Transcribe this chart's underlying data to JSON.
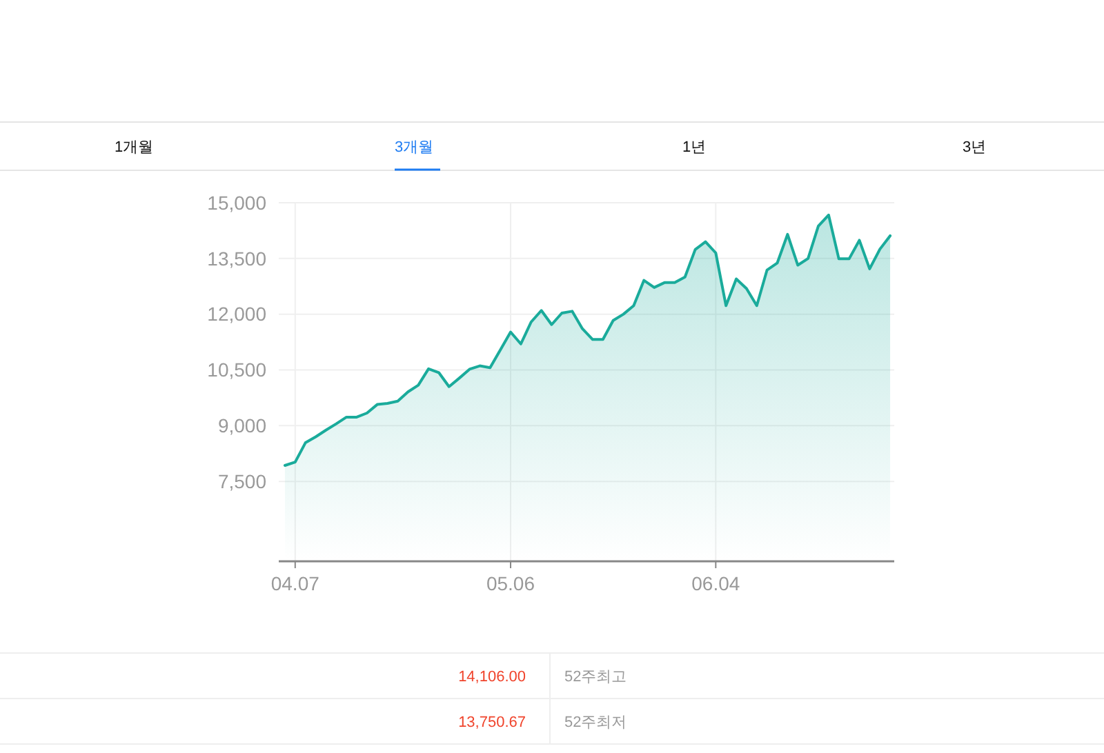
{
  "chart_data": {
    "type": "area",
    "categories": [
      null,
      "04.07",
      null,
      null,
      null,
      null,
      null,
      null,
      null,
      null,
      null,
      null,
      null,
      null,
      null,
      null,
      null,
      null,
      null,
      null,
      null,
      null,
      "05.06",
      null,
      null,
      null,
      null,
      null,
      null,
      null,
      null,
      null,
      null,
      null,
      null,
      null,
      null,
      null,
      null,
      null,
      null,
      null,
      "06.04",
      null,
      null,
      null,
      null,
      null,
      null,
      null,
      null,
      null,
      null,
      null,
      null,
      null,
      null,
      null,
      null,
      null
    ],
    "series": [
      {
        "color": "#1aab9b",
        "values": [
          7930,
          8020,
          8540,
          8700,
          8880,
          9050,
          9230,
          9230,
          9340,
          9570,
          9600,
          9660,
          9910,
          10090,
          10530,
          10430,
          10050,
          10280,
          10520,
          10610,
          10560,
          11040,
          11520,
          11200,
          11790,
          12100,
          11720,
          12030,
          12080,
          11610,
          11320,
          11320,
          11830,
          12000,
          12230,
          12910,
          12720,
          12850,
          12850,
          13000,
          13740,
          13950,
          13650,
          12230,
          12950,
          12690,
          12230,
          13190,
          13380,
          14150,
          13320,
          13500,
          14370,
          14670,
          13490,
          13490,
          13990,
          13220,
          13750,
          14110
        ]
      }
    ],
    "ylim": [
      5350,
      15000
    ],
    "yticks": [
      {
        "value": 7500,
        "label": "7,500"
      },
      {
        "value": 9000,
        "label": "9,000"
      },
      {
        "value": 10500,
        "label": "10,500"
      },
      {
        "value": 12000,
        "label": "12,000"
      },
      {
        "value": 13500,
        "label": "13,500"
      },
      {
        "value": 15000,
        "label": "15,000"
      }
    ],
    "grid": true,
    "annotations": [
      "1개월",
      "3개월",
      "1년",
      "3년",
      "14,106.00",
      "52주최고",
      "13,750.67",
      "52주최저"
    ]
  }
}
